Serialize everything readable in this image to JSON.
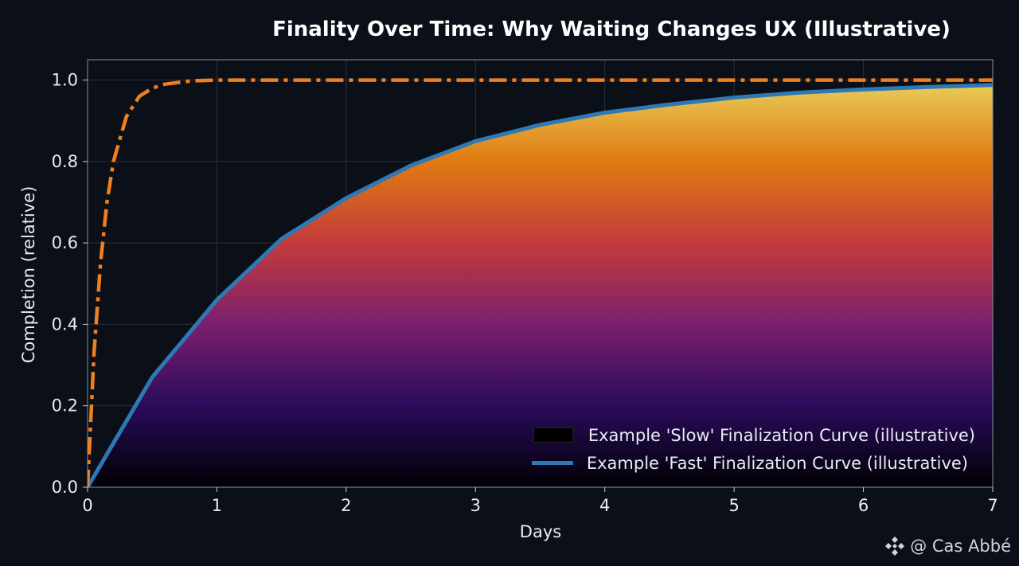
{
  "chart_data": {
    "type": "area",
    "title": "Finality Over Time: Why Waiting Changes UX (Illustrative)",
    "xlabel": "Days",
    "ylabel": "Completion (relative)",
    "xlim": [
      0,
      7
    ],
    "ylim": [
      0,
      1.05
    ],
    "x_ticks": [
      "0",
      "1",
      "2",
      "3",
      "4",
      "5",
      "6",
      "7"
    ],
    "y_ticks": [
      "0.0",
      "0.2",
      "0.4",
      "0.6",
      "0.8",
      "1.0"
    ],
    "grid": true,
    "legend_position": "bottom-right",
    "series": [
      {
        "name": "Example 'Slow' Finalization Curve (illustrative)",
        "style": "gradient-fill",
        "color": "#000000",
        "x": [
          0,
          0.5,
          1,
          1.5,
          2,
          2.5,
          3,
          3.5,
          4,
          4.5,
          5,
          5.5,
          6,
          6.5,
          7
        ],
        "y": [
          0,
          0.27,
          0.46,
          0.61,
          0.71,
          0.79,
          0.85,
          0.89,
          0.92,
          0.94,
          0.957,
          0.969,
          0.977,
          0.983,
          0.988
        ]
      },
      {
        "name": "Example 'Fast' Finalization Curve (illustrative)",
        "style": "solid",
        "color": "#2e78b5",
        "x": [
          0,
          0.5,
          1,
          1.5,
          2,
          2.5,
          3,
          3.5,
          4,
          4.5,
          5,
          5.5,
          6,
          6.5,
          7
        ],
        "y": [
          0,
          0.27,
          0.46,
          0.61,
          0.71,
          0.79,
          0.85,
          0.89,
          0.92,
          0.94,
          0.957,
          0.969,
          0.977,
          0.983,
          0.988
        ]
      },
      {
        "style": "dash-dot",
        "color": "#f07f1e",
        "x": [
          0,
          0.05,
          0.1,
          0.15,
          0.2,
          0.3,
          0.4,
          0.5,
          0.6,
          0.8,
          1,
          2,
          3,
          4,
          5,
          6,
          7
        ],
        "y": [
          0,
          0.33,
          0.55,
          0.7,
          0.8,
          0.91,
          0.96,
          0.98,
          0.99,
          0.998,
          1.0,
          1.0,
          1.0,
          1.0,
          1.0,
          1.0,
          1.0
        ]
      }
    ]
  },
  "legend": {
    "slow_label": "Example 'Slow' Finalization Curve (illustrative)",
    "fast_label": "Example 'Fast' Finalization Curve (illustrative)"
  },
  "watermark": {
    "text": "@ Cas Abbé",
    "icon": "binance-diamond-icon"
  },
  "colors": {
    "background": "#0b0f18",
    "fast_line": "#2e78b5",
    "dashdot_line": "#f07f1e",
    "gradient": [
      "#000004",
      "#2a0b5c",
      "#7b1f6e",
      "#c33b3b",
      "#e07a12",
      "#e8d05a"
    ]
  }
}
